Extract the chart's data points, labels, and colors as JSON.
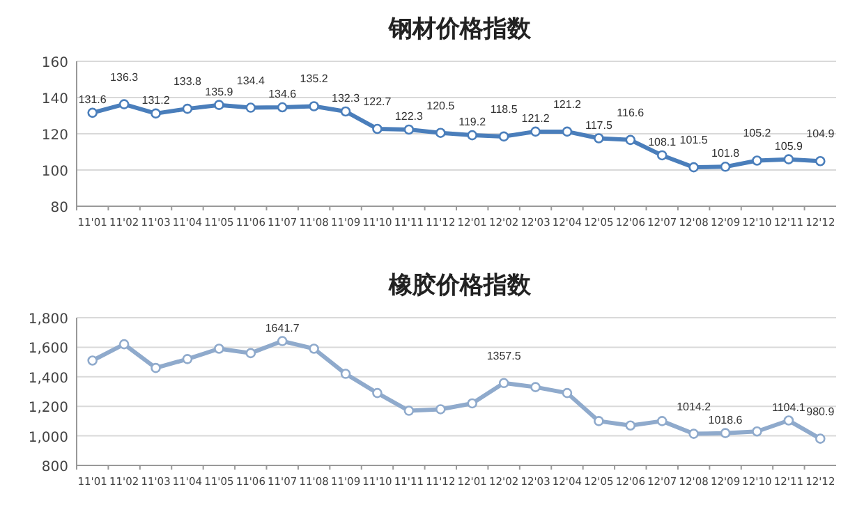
{
  "chart_data": [
    {
      "type": "line",
      "title": "钢材价格指数",
      "categories": [
        "11'01",
        "11'02",
        "11'03",
        "11'04",
        "11'05",
        "11'06",
        "11'07",
        "11'08",
        "11'09",
        "11'10",
        "11'11",
        "11'12",
        "12'01",
        "12'02",
        "12'03",
        "12'04",
        "12'05",
        "12'06",
        "12'07",
        "12'08",
        "12'09",
        "12'10",
        "12'11",
        "12'12"
      ],
      "series": [
        {
          "color": "#4a7ebb",
          "values": [
            131.6,
            136.3,
            131.2,
            133.8,
            135.9,
            134.4,
            134.6,
            135.2,
            132.3,
            122.7,
            122.3,
            120.5,
            119.2,
            118.5,
            121.2,
            121.2,
            117.5,
            116.6,
            108.1,
            101.5,
            101.8,
            105.2,
            105.9,
            104.9
          ]
        }
      ],
      "ylim": [
        80,
        160
      ],
      "yticks": [
        80,
        100,
        120,
        140,
        160
      ],
      "grid": "y",
      "marker": "circle",
      "data_labels": true
    },
    {
      "type": "line",
      "title": "橡胶价格指数",
      "categories": [
        "11'01",
        "11'02",
        "11'03",
        "11'04",
        "11'05",
        "11'06",
        "11'07",
        "11'08",
        "11'09",
        "11'10",
        "11'11",
        "11'12",
        "12'01",
        "12'02",
        "12'03",
        "12'04",
        "12'05",
        "12'06",
        "12'07",
        "12'08",
        "12'09",
        "12'10",
        "12'11",
        "12'12"
      ],
      "series": [
        {
          "color": "#8faacc",
          "values": [
            1510,
            1620,
            1460,
            1520,
            1590,
            1560,
            1641.7,
            1590,
            1420,
            1290,
            1170,
            1180,
            1220,
            1357.5,
            1330,
            1290,
            1100,
            1070,
            1100,
            1014.2,
            1018.6,
            1030,
            1104.1,
            980.9
          ],
          "value_labels": [
            null,
            null,
            null,
            null,
            null,
            null,
            "1641.7",
            null,
            null,
            null,
            null,
            null,
            null,
            "1357.5",
            null,
            null,
            null,
            null,
            null,
            "1014.2",
            "1018.6",
            null,
            "1104.1",
            "980.9"
          ]
        }
      ],
      "ylim": [
        800,
        1800
      ],
      "yticks": [
        {
          "value": 800,
          "label": "800"
        },
        {
          "value": 1000,
          "label": "1,000"
        },
        {
          "value": 1200,
          "label": "1,200"
        },
        {
          "value": 1400,
          "label": "1,400"
        },
        {
          "value": 1600,
          "label": "1,600"
        },
        {
          "value": 1800,
          "label": "1,800"
        }
      ],
      "grid": "y",
      "marker": "circle"
    }
  ]
}
